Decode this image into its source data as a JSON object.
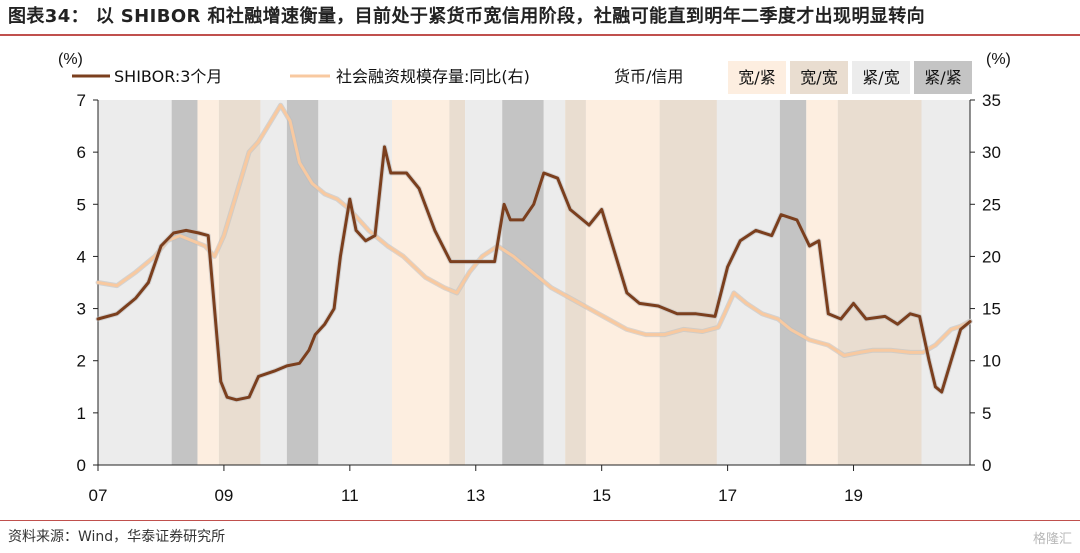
{
  "figure": {
    "title": "图表34： 以 SHIBOR 和社融增速衡量，目前处于紧货币宽信用阶段，社融可能直到明年二季度才出现明显转向",
    "source": "资料来源：Wind，华泰证券研究所",
    "watermark": "格隆汇"
  },
  "chart_data": {
    "type": "line",
    "title": "",
    "xlabel": "",
    "y_left": {
      "unit": "(%)",
      "range": [
        0,
        7
      ],
      "ticks": [
        "0",
        "1",
        "2",
        "3",
        "4",
        "5",
        "6",
        "7"
      ]
    },
    "y_right": {
      "unit": "(%)",
      "range": [
        0,
        35
      ],
      "ticks": [
        "0",
        "5",
        "10",
        "15",
        "20",
        "25",
        "30",
        "35"
      ]
    },
    "x": {
      "range": [
        2007.0,
        2020.85
      ],
      "ticks": [
        {
          "v": 2007,
          "label": "07"
        },
        {
          "v": 2009,
          "label": "09"
        },
        {
          "v": 2011,
          "label": "11"
        },
        {
          "v": 2013,
          "label": "13"
        },
        {
          "v": 2015,
          "label": "15"
        },
        {
          "v": 2017,
          "label": "17"
        },
        {
          "v": 2019,
          "label": "19"
        }
      ]
    },
    "legend": {
      "s1": "SHIBOR:3个月",
      "s2": "社会融资规模存量:同比(右)",
      "regime_title": "货币/信用",
      "regimes": [
        "宽/紧",
        "宽/宽",
        "紧/宽",
        "紧/紧"
      ]
    },
    "regime_colors": {
      "宽/紧": "#fdeee0",
      "宽/宽": "#e9ddd0",
      "紧/宽": "#ececec",
      "紧/紧": "#c4c4c4"
    },
    "regime_bands": [
      {
        "from": 2007.0,
        "to": 2008.17,
        "regime": "紧/宽"
      },
      {
        "from": 2008.17,
        "to": 2008.58,
        "regime": "紧/紧"
      },
      {
        "from": 2008.58,
        "to": 2008.92,
        "regime": "宽/紧"
      },
      {
        "from": 2008.92,
        "to": 2009.58,
        "regime": "宽/宽"
      },
      {
        "from": 2009.58,
        "to": 2010.0,
        "regime": "紧/宽"
      },
      {
        "from": 2010.0,
        "to": 2010.5,
        "regime": "紧/紧"
      },
      {
        "from": 2010.5,
        "to": 2011.67,
        "regime": "紧/宽"
      },
      {
        "from": 2011.67,
        "to": 2012.58,
        "regime": "宽/紧"
      },
      {
        "from": 2012.58,
        "to": 2012.83,
        "regime": "宽/宽"
      },
      {
        "from": 2012.83,
        "to": 2013.42,
        "regime": "紧/宽"
      },
      {
        "from": 2013.42,
        "to": 2014.08,
        "regime": "紧/紧"
      },
      {
        "from": 2014.08,
        "to": 2014.42,
        "regime": "紧/宽"
      },
      {
        "from": 2014.42,
        "to": 2014.75,
        "regime": "宽/宽"
      },
      {
        "from": 2014.75,
        "to": 2015.92,
        "regime": "宽/紧"
      },
      {
        "from": 2015.92,
        "to": 2016.83,
        "regime": "宽/宽"
      },
      {
        "from": 2016.83,
        "to": 2017.83,
        "regime": "紧/宽"
      },
      {
        "from": 2017.83,
        "to": 2018.25,
        "regime": "紧/紧"
      },
      {
        "from": 2018.25,
        "to": 2018.75,
        "regime": "宽/紧"
      },
      {
        "from": 2018.75,
        "to": 2020.08,
        "regime": "宽/宽"
      },
      {
        "from": 2020.08,
        "to": 2020.85,
        "regime": "紧/宽"
      }
    ],
    "series": [
      {
        "name": "SHIBOR:3个月",
        "axis": "left",
        "color": "#7b3f1e",
        "points": [
          [
            2007.0,
            2.8
          ],
          [
            2007.3,
            2.9
          ],
          [
            2007.6,
            3.2
          ],
          [
            2007.8,
            3.5
          ],
          [
            2008.0,
            4.2
          ],
          [
            2008.2,
            4.45
          ],
          [
            2008.4,
            4.5
          ],
          [
            2008.6,
            4.45
          ],
          [
            2008.75,
            4.4
          ],
          [
            2008.85,
            3.0
          ],
          [
            2008.95,
            1.6
          ],
          [
            2009.05,
            1.3
          ],
          [
            2009.2,
            1.25
          ],
          [
            2009.4,
            1.3
          ],
          [
            2009.55,
            1.7
          ],
          [
            2009.8,
            1.8
          ],
          [
            2010.0,
            1.9
          ],
          [
            2010.2,
            1.95
          ],
          [
            2010.35,
            2.2
          ],
          [
            2010.45,
            2.5
          ],
          [
            2010.6,
            2.7
          ],
          [
            2010.75,
            3.0
          ],
          [
            2010.85,
            4.0
          ],
          [
            2011.0,
            5.1
          ],
          [
            2011.1,
            4.5
          ],
          [
            2011.25,
            4.3
          ],
          [
            2011.4,
            4.4
          ],
          [
            2011.55,
            6.1
          ],
          [
            2011.65,
            5.6
          ],
          [
            2011.9,
            5.6
          ],
          [
            2012.1,
            5.3
          ],
          [
            2012.35,
            4.5
          ],
          [
            2012.6,
            3.9
          ],
          [
            2012.85,
            3.9
          ],
          [
            2013.0,
            3.9
          ],
          [
            2013.3,
            3.9
          ],
          [
            2013.45,
            5.0
          ],
          [
            2013.55,
            4.7
          ],
          [
            2013.75,
            4.7
          ],
          [
            2013.92,
            5.0
          ],
          [
            2014.08,
            5.6
          ],
          [
            2014.3,
            5.5
          ],
          [
            2014.5,
            4.9
          ],
          [
            2014.8,
            4.6
          ],
          [
            2015.0,
            4.9
          ],
          [
            2015.2,
            4.1
          ],
          [
            2015.4,
            3.3
          ],
          [
            2015.6,
            3.1
          ],
          [
            2015.9,
            3.05
          ],
          [
            2016.2,
            2.9
          ],
          [
            2016.5,
            2.9
          ],
          [
            2016.8,
            2.85
          ],
          [
            2017.0,
            3.8
          ],
          [
            2017.2,
            4.3
          ],
          [
            2017.45,
            4.5
          ],
          [
            2017.7,
            4.4
          ],
          [
            2017.85,
            4.8
          ],
          [
            2018.1,
            4.7
          ],
          [
            2018.3,
            4.2
          ],
          [
            2018.45,
            4.3
          ],
          [
            2018.6,
            2.9
          ],
          [
            2018.8,
            2.8
          ],
          [
            2019.0,
            3.1
          ],
          [
            2019.2,
            2.8
          ],
          [
            2019.5,
            2.85
          ],
          [
            2019.7,
            2.7
          ],
          [
            2019.9,
            2.9
          ],
          [
            2020.05,
            2.85
          ],
          [
            2020.2,
            2.0
          ],
          [
            2020.3,
            1.5
          ],
          [
            2020.4,
            1.4
          ],
          [
            2020.55,
            2.0
          ],
          [
            2020.7,
            2.6
          ],
          [
            2020.85,
            2.75
          ]
        ]
      },
      {
        "name": "社会融资规模存量:同比(右)",
        "axis": "right",
        "color": "#f8c9a0",
        "points": [
          [
            2007.0,
            17.5
          ],
          [
            2007.3,
            17.2
          ],
          [
            2007.6,
            18.5
          ],
          [
            2007.9,
            20.0
          ],
          [
            2008.1,
            21.5
          ],
          [
            2008.3,
            22.0
          ],
          [
            2008.5,
            21.5
          ],
          [
            2008.7,
            21.0
          ],
          [
            2008.85,
            20.0
          ],
          [
            2009.0,
            22.0
          ],
          [
            2009.2,
            26.0
          ],
          [
            2009.4,
            30.0
          ],
          [
            2009.55,
            31.0
          ],
          [
            2009.75,
            33.0
          ],
          [
            2009.9,
            34.5
          ],
          [
            2010.05,
            33.0
          ],
          [
            2010.2,
            29.0
          ],
          [
            2010.4,
            27.0
          ],
          [
            2010.6,
            26.0
          ],
          [
            2010.8,
            25.5
          ],
          [
            2011.0,
            24.5
          ],
          [
            2011.3,
            22.5
          ],
          [
            2011.6,
            21.0
          ],
          [
            2011.85,
            20.0
          ],
          [
            2012.2,
            18.0
          ],
          [
            2012.5,
            17.0
          ],
          [
            2012.7,
            16.5
          ],
          [
            2012.9,
            18.5
          ],
          [
            2013.1,
            20.0
          ],
          [
            2013.35,
            21.0
          ],
          [
            2013.6,
            20.0
          ],
          [
            2013.9,
            18.5
          ],
          [
            2014.2,
            17.0
          ],
          [
            2014.5,
            16.0
          ],
          [
            2014.8,
            15.0
          ],
          [
            2015.1,
            14.0
          ],
          [
            2015.4,
            13.0
          ],
          [
            2015.7,
            12.5
          ],
          [
            2016.0,
            12.5
          ],
          [
            2016.3,
            13.0
          ],
          [
            2016.6,
            12.8
          ],
          [
            2016.85,
            13.2
          ],
          [
            2016.95,
            14.5
          ],
          [
            2017.1,
            16.5
          ],
          [
            2017.3,
            15.5
          ],
          [
            2017.55,
            14.5
          ],
          [
            2017.8,
            14.0
          ],
          [
            2018.0,
            13.0
          ],
          [
            2018.3,
            12.0
          ],
          [
            2018.6,
            11.5
          ],
          [
            2018.85,
            10.5
          ],
          [
            2019.1,
            10.8
          ],
          [
            2019.3,
            11.0
          ],
          [
            2019.6,
            11.0
          ],
          [
            2019.9,
            10.8
          ],
          [
            2020.1,
            10.8
          ],
          [
            2020.3,
            11.5
          ],
          [
            2020.55,
            13.0
          ],
          [
            2020.7,
            13.3
          ],
          [
            2020.85,
            13.8
          ]
        ]
      }
    ]
  }
}
